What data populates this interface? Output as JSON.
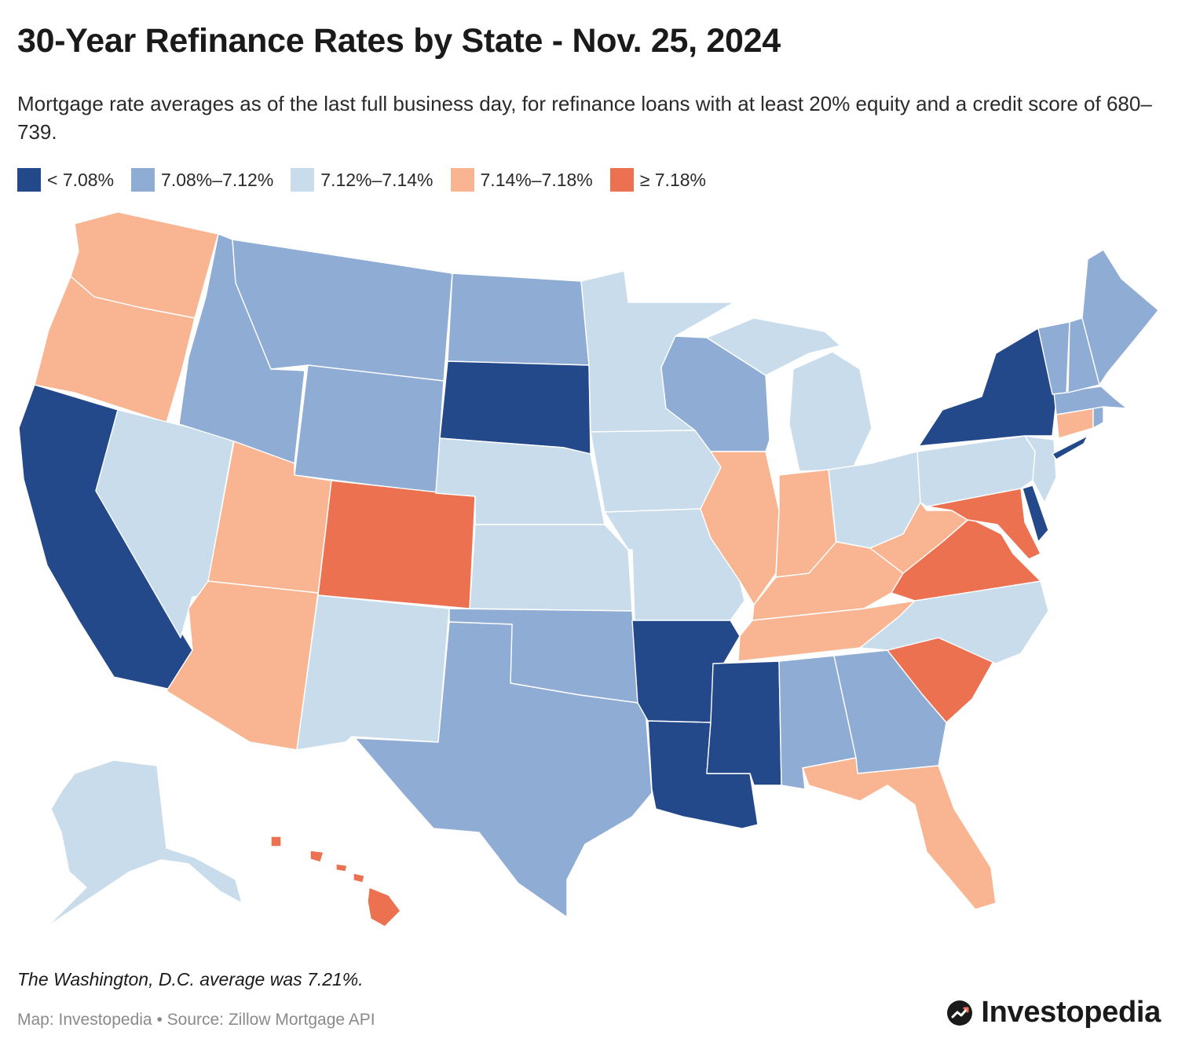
{
  "title": "30-Year Refinance Rates by State - Nov. 25, 2024",
  "subtitle": "Mortgage rate averages as of the last full business day, for refinance loans with at least 20% equity and a credit score of 680–739.",
  "legend": [
    {
      "label": "< 7.08%",
      "color": "#23498a"
    },
    {
      "label": "7.08%–7.12%",
      "color": "#8eacd4"
    },
    {
      "label": "7.12%–7.14%",
      "color": "#c8dcec"
    },
    {
      "label": "7.14%–7.18%",
      "color": "#f9b591"
    },
    {
      "label": "≥ 7.18%",
      "color": "#ec7150"
    }
  ],
  "states": {
    "WA": "7.14%–7.18%",
    "OR": "7.14%–7.18%",
    "CA": "< 7.08%",
    "NV": "7.12%–7.14%",
    "ID": "7.08%–7.12%",
    "MT": "7.08%–7.12%",
    "WY": "7.08%–7.12%",
    "UT": "7.14%–7.18%",
    "AZ": "7.14%–7.18%",
    "CO": "≥ 7.18%",
    "NM": "7.12%–7.14%",
    "ND": "7.08%–7.12%",
    "SD": "< 7.08%",
    "NE": "7.12%–7.14%",
    "KS": "7.12%–7.14%",
    "OK": "7.08%–7.12%",
    "TX": "7.08%–7.12%",
    "MN": "7.12%–7.14%",
    "IA": "7.12%–7.14%",
    "MO": "7.12%–7.14%",
    "AR": "< 7.08%",
    "LA": "< 7.08%",
    "WI": "7.08%–7.12%",
    "IL": "7.14%–7.18%",
    "MI": "7.12%–7.14%",
    "IN": "7.14%–7.18%",
    "OH": "7.12%–7.14%",
    "KY": "7.14%–7.18%",
    "TN": "7.14%–7.18%",
    "MS": "< 7.08%",
    "AL": "7.08%–7.12%",
    "GA": "7.08%–7.12%",
    "FL": "7.14%–7.18%",
    "SC": "≥ 7.18%",
    "NC": "7.12%–7.14%",
    "VA": "≥ 7.18%",
    "WV": "7.14%–7.18%",
    "MD": "≥ 7.18%",
    "DE": "< 7.08%",
    "PA": "7.12%–7.14%",
    "NJ": "7.12%–7.14%",
    "NY": "< 7.08%",
    "CT": "7.14%–7.18%",
    "RI": "7.08%–7.12%",
    "MA": "7.08%–7.12%",
    "VT": "7.08%–7.12%",
    "NH": "7.08%–7.12%",
    "ME": "7.08%–7.12%",
    "AK": "7.12%–7.14%",
    "HI": "≥ 7.18%"
  },
  "note": "The Washington, D.C. average was 7.21%.",
  "source": "Map: Investopedia • Source: Zillow Mortgage API",
  "brand": "Investopedia"
}
